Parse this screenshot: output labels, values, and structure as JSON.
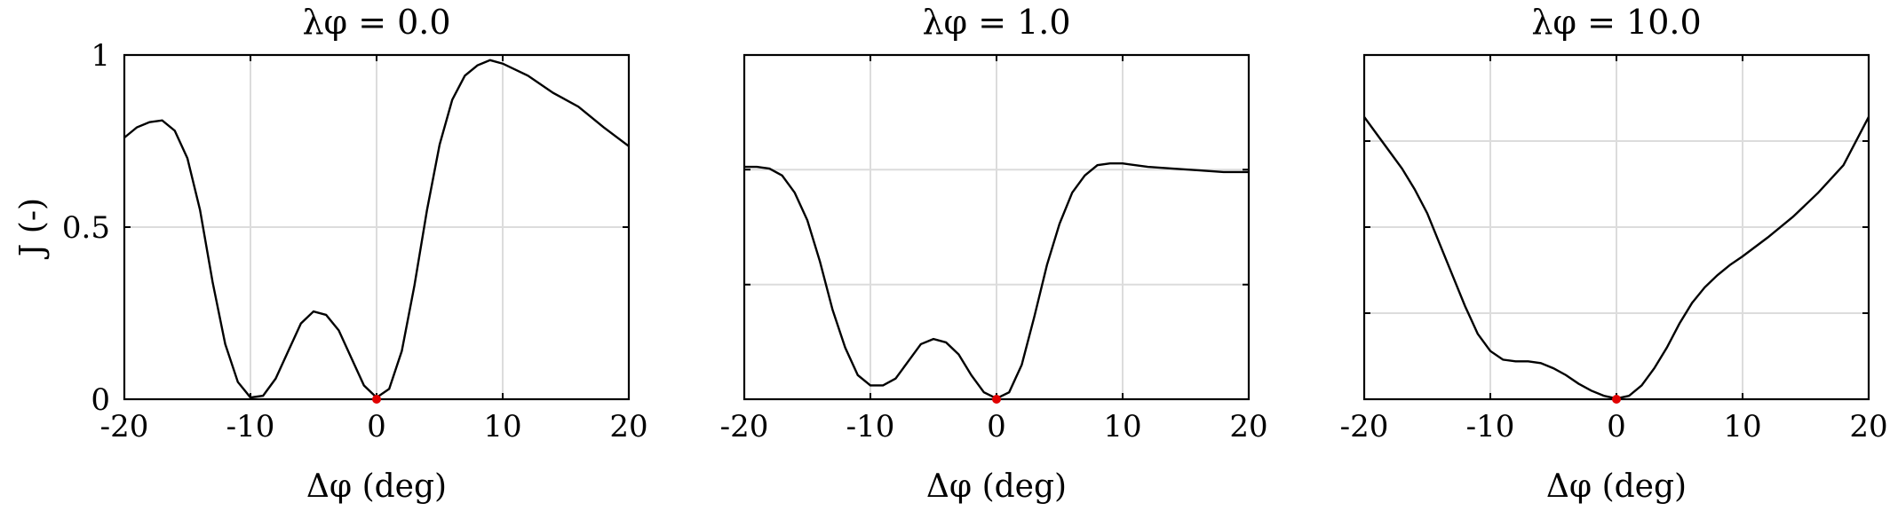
{
  "chart_data": [
    {
      "type": "line",
      "title": "λφ = 0.0",
      "xlabel": "Δφ (deg)",
      "ylabel": "J (-)",
      "xlim": [
        -20,
        20
      ],
      "ylim": [
        0,
        1
      ],
      "xticks": [
        "-20",
        "-10",
        "0",
        "10",
        "20"
      ],
      "yticks": [
        "0",
        "0.5",
        "1"
      ],
      "grid": true,
      "x": [
        -20,
        -19,
        -18,
        -17,
        -16,
        -15,
        -14,
        -13,
        -12,
        -11,
        -10,
        -9,
        -8,
        -7,
        -6,
        -5,
        -4,
        -3,
        -2,
        -1,
        0,
        1,
        2,
        3,
        4,
        5,
        6,
        7,
        8,
        9,
        10,
        12,
        14,
        16,
        18,
        20
      ],
      "y": [
        0.76,
        0.79,
        0.805,
        0.81,
        0.78,
        0.7,
        0.55,
        0.34,
        0.16,
        0.05,
        0.005,
        0.01,
        0.06,
        0.14,
        0.22,
        0.255,
        0.245,
        0.2,
        0.12,
        0.04,
        0.005,
        0.03,
        0.14,
        0.33,
        0.55,
        0.74,
        0.87,
        0.94,
        0.97,
        0.985,
        0.975,
        0.94,
        0.89,
        0.85,
        0.79,
        0.735
      ],
      "minimum": {
        "x": 0,
        "y": 0
      }
    },
    {
      "type": "line",
      "title": "λφ = 1.0",
      "xlabel": "Δφ (deg)",
      "ylabel": "",
      "xlim": [
        -20,
        20
      ],
      "ylim": [
        0,
        1
      ],
      "xticks": [
        "-20",
        "-10",
        "0",
        "10",
        "20"
      ],
      "yticks": [],
      "grid": true,
      "x": [
        -20,
        -19,
        -18,
        -17,
        -16,
        -15,
        -14,
        -13,
        -12,
        -11,
        -10,
        -9,
        -8,
        -7,
        -6,
        -5,
        -4,
        -3,
        -2,
        -1,
        0,
        1,
        2,
        3,
        4,
        5,
        6,
        7,
        8,
        9,
        10,
        12,
        14,
        16,
        18,
        20
      ],
      "y": [
        0.675,
        0.675,
        0.67,
        0.65,
        0.6,
        0.52,
        0.4,
        0.26,
        0.15,
        0.07,
        0.04,
        0.04,
        0.06,
        0.11,
        0.16,
        0.175,
        0.165,
        0.13,
        0.07,
        0.02,
        0.002,
        0.02,
        0.1,
        0.24,
        0.39,
        0.51,
        0.6,
        0.65,
        0.68,
        0.685,
        0.685,
        0.675,
        0.67,
        0.665,
        0.66,
        0.66
      ],
      "minimum": {
        "x": 0,
        "y": 0
      }
    },
    {
      "type": "line",
      "title": "λφ = 10.0",
      "xlabel": "Δφ (deg)",
      "ylabel": "",
      "xlim": [
        -20,
        20
      ],
      "ylim": [
        0,
        1
      ],
      "xticks": [
        "-20",
        "-10",
        "0",
        "10",
        "20"
      ],
      "yticks": [],
      "grid": true,
      "x": [
        -20,
        -19,
        -18,
        -17,
        -16,
        -15,
        -14,
        -13,
        -12,
        -11,
        -10,
        -9,
        -8,
        -7,
        -6,
        -5,
        -4,
        -3,
        -2,
        -1,
        0,
        1,
        2,
        3,
        4,
        5,
        6,
        7,
        8,
        9,
        10,
        12,
        14,
        16,
        18,
        20
      ],
      "y": [
        0.82,
        0.77,
        0.72,
        0.67,
        0.61,
        0.54,
        0.45,
        0.36,
        0.27,
        0.19,
        0.14,
        0.115,
        0.11,
        0.11,
        0.105,
        0.09,
        0.07,
        0.045,
        0.025,
        0.01,
        0.002,
        0.01,
        0.04,
        0.09,
        0.15,
        0.22,
        0.28,
        0.325,
        0.36,
        0.39,
        0.415,
        0.47,
        0.53,
        0.6,
        0.68,
        0.82
      ],
      "minimum": {
        "x": 0,
        "y": 0
      }
    }
  ]
}
